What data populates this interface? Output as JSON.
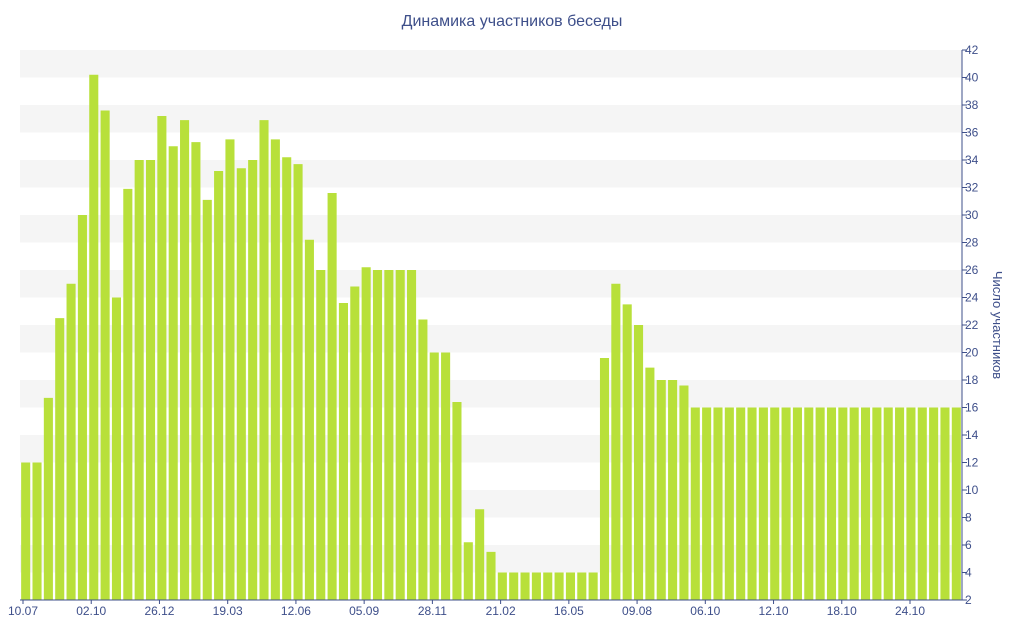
{
  "chart_data": {
    "type": "bar",
    "title": "Динамика участников беседы",
    "ylabel": "Число участников",
    "xlabel": "",
    "ylim": [
      2,
      42
    ],
    "y_ticks": [
      2,
      4,
      6,
      8,
      10,
      12,
      14,
      16,
      18,
      20,
      22,
      24,
      26,
      28,
      30,
      32,
      34,
      36,
      38,
      40,
      42
    ],
    "x_tick_labels": [
      "10.07",
      "02.10",
      "26.12",
      "19.03",
      "12.06",
      "05.09",
      "28.11",
      "21.02",
      "16.05",
      "09.08",
      "06.10",
      "12.10",
      "18.10",
      "24.10"
    ],
    "series": [
      {
        "color": "#b8e03a",
        "values": [
          12,
          12,
          16.7,
          22.5,
          25,
          30,
          40.2,
          37.6,
          24,
          31.9,
          34,
          34,
          37.2,
          35,
          36.9,
          35.3,
          31.1,
          33.2,
          35.5,
          33.4,
          34,
          36.9,
          35.5,
          34.2,
          33.7,
          28.2,
          26,
          31.6,
          23.6,
          24.8,
          26.2,
          26,
          26,
          26,
          26,
          22.4,
          20,
          20,
          16.4,
          6.2,
          8.6,
          5.5,
          4,
          4,
          4,
          4,
          4,
          4,
          4,
          4,
          4,
          19.6,
          25,
          23.5,
          22,
          18.9,
          18,
          18,
          17.6,
          16,
          16,
          16,
          16,
          16,
          16,
          16,
          16,
          16,
          16,
          16,
          16,
          16,
          16,
          16,
          16,
          16,
          16,
          16,
          16,
          16,
          16,
          16,
          16
        ]
      }
    ],
    "grid": "alternating horizontal bands",
    "y_axis_side": "right"
  }
}
